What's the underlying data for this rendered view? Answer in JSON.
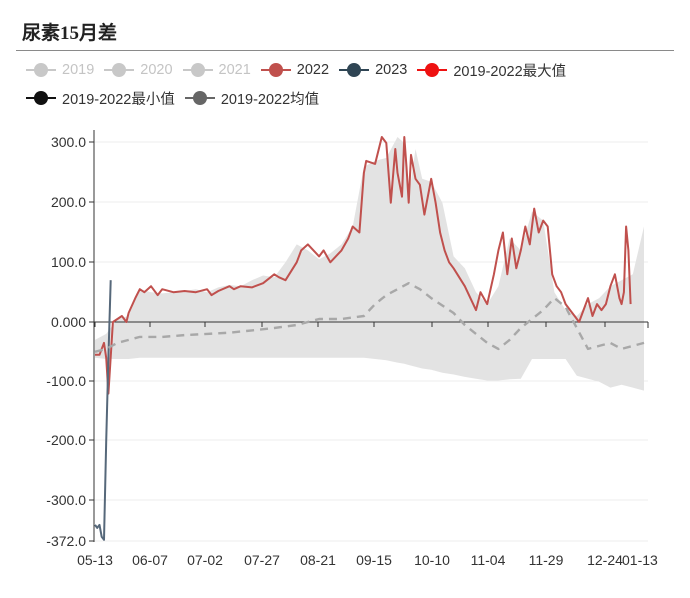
{
  "title": "尿素15月差",
  "legend": [
    {
      "label": "2019",
      "color": "#c8c8c8",
      "active": false
    },
    {
      "label": "2020",
      "color": "#c8c8c8",
      "active": false
    },
    {
      "label": "2021",
      "color": "#c8c8c8",
      "active": false
    },
    {
      "label": "2022",
      "color": "#c0504d",
      "active": true
    },
    {
      "label": "2023",
      "color": "#2f4554",
      "active": true
    },
    {
      "label": "2019-2022最大值",
      "color": "#ee1111",
      "active": true
    },
    {
      "label": "2019-2022最小值",
      "color": "#111111",
      "active": true
    },
    {
      "label": "2019-2022均值",
      "color": "#666666",
      "active": true
    }
  ],
  "chart_data": {
    "type": "line",
    "title": "尿素15月差",
    "x_ticks": [
      "05-13",
      "06-07",
      "07-02",
      "07-27",
      "08-21",
      "09-15",
      "10-10",
      "11-04",
      "11-29",
      "12-24",
      "01-13"
    ],
    "y_ticks": [
      "300.0",
      "200.0",
      "100.0",
      "0.000",
      "-100.0",
      "-200.0",
      "-300.0",
      "-372.0"
    ],
    "ylim": [
      -372,
      320
    ],
    "x_domain_days": [
      0,
      245
    ],
    "x_unit": "days after 05-13",
    "grid": "horizontal",
    "legend_position": "top",
    "range_band": {
      "name": "2019-2022 max/min range",
      "color": "#e3e3e3",
      "x": [
        0,
        5,
        10,
        15,
        20,
        25,
        30,
        35,
        40,
        45,
        50,
        55,
        60,
        65,
        70,
        75,
        80,
        85,
        90,
        95,
        100,
        105,
        110,
        115,
        120,
        125,
        130,
        135,
        138,
        140,
        143,
        146,
        150,
        155,
        160,
        165,
        170,
        175,
        180,
        185,
        190,
        195,
        200,
        205,
        210,
        215,
        220,
        225,
        230,
        235,
        240,
        245
      ],
      "upper": [
        -30,
        -20,
        5,
        10,
        55,
        50,
        48,
        50,
        52,
        55,
        50,
        58,
        62,
        60,
        70,
        78,
        75,
        100,
        130,
        120,
        105,
        115,
        130,
        160,
        260,
        270,
        275,
        310,
        300,
        210,
        290,
        240,
        235,
        200,
        110,
        90,
        50,
        30,
        60,
        140,
        120,
        185,
        170,
        50,
        20,
        10,
        30,
        40,
        60,
        70,
        80,
        160
      ],
      "lower": [
        -60,
        -62,
        -62,
        -62,
        -60,
        -60,
        -60,
        -60,
        -60,
        -60,
        -60,
        -60,
        -60,
        -60,
        -60,
        -60,
        -60,
        -60,
        -60,
        -60,
        -60,
        -60,
        -60,
        -60,
        -60,
        -62,
        -64,
        -68,
        -70,
        -72,
        -75,
        -78,
        -80,
        -85,
        -88,
        -92,
        -95,
        -98,
        -98,
        -96,
        -95,
        -62,
        -62,
        -62,
        -62,
        -90,
        -95,
        -100,
        -110,
        -105,
        -110,
        -115
      ]
    },
    "series": [
      {
        "name": "2022",
        "color": "#c0504d",
        "x": [
          0,
          2,
          4,
          5,
          6,
          8,
          10,
          12,
          14,
          15,
          18,
          20,
          22,
          25,
          28,
          30,
          35,
          40,
          45,
          50,
          52,
          55,
          60,
          62,
          65,
          70,
          75,
          80,
          82,
          85,
          90,
          92,
          95,
          100,
          102,
          105,
          110,
          113,
          115,
          118,
          120,
          121,
          125,
          128,
          130,
          132,
          134,
          135,
          137,
          138,
          139,
          140,
          141,
          143,
          145,
          147,
          150,
          152,
          154,
          156,
          158,
          160,
          165,
          170,
          172,
          175,
          178,
          180,
          182,
          184,
          186,
          188,
          190,
          192,
          194,
          196,
          198,
          200,
          202,
          204,
          206,
          208,
          210,
          212,
          214,
          216,
          218,
          220,
          222,
          224,
          226,
          228,
          230,
          232,
          234,
          235,
          236,
          237,
          238,
          239
        ],
        "y": [
          -55,
          -55,
          -35,
          -60,
          -120,
          0,
          5,
          10,
          0,
          15,
          40,
          55,
          50,
          60,
          45,
          55,
          50,
          52,
          50,
          55,
          45,
          52,
          60,
          55,
          60,
          58,
          65,
          80,
          75,
          70,
          100,
          120,
          130,
          110,
          120,
          100,
          120,
          140,
          160,
          150,
          250,
          270,
          265,
          310,
          300,
          200,
          290,
          250,
          210,
          310,
          260,
          200,
          280,
          240,
          230,
          180,
          240,
          200,
          150,
          120,
          100,
          90,
          60,
          20,
          50,
          30,
          80,
          120,
          150,
          80,
          140,
          90,
          120,
          160,
          130,
          190,
          150,
          170,
          160,
          80,
          60,
          50,
          30,
          20,
          10,
          0,
          20,
          40,
          10,
          30,
          20,
          30,
          60,
          80,
          40,
          30,
          50,
          160,
          120,
          30
        ]
      },
      {
        "name": "2023",
        "color": "#56687a",
        "x": [
          0,
          1,
          2,
          3,
          4,
          5,
          6,
          7
        ],
        "y": [
          -340,
          -345,
          -340,
          -360,
          -365,
          -200,
          -60,
          70
        ]
      },
      {
        "name": "2019-2022均值",
        "color": "#a8a8a8",
        "dashed": true,
        "x": [
          0,
          5,
          10,
          20,
          30,
          40,
          50,
          60,
          70,
          80,
          90,
          100,
          110,
          120,
          125,
          130,
          135,
          140,
          145,
          150,
          160,
          165,
          170,
          175,
          180,
          185,
          190,
          195,
          200,
          205,
          210,
          215,
          220,
          225,
          230,
          235,
          240,
          245
        ],
        "y": [
          -50,
          -45,
          -35,
          -25,
          -25,
          -22,
          -20,
          -18,
          -14,
          -10,
          -5,
          5,
          5,
          10,
          30,
          45,
          55,
          65,
          55,
          40,
          15,
          -5,
          -20,
          -35,
          -45,
          -30,
          -10,
          5,
          20,
          40,
          25,
          -10,
          -45,
          -40,
          -35,
          -45,
          -40,
          -35
        ]
      }
    ]
  }
}
